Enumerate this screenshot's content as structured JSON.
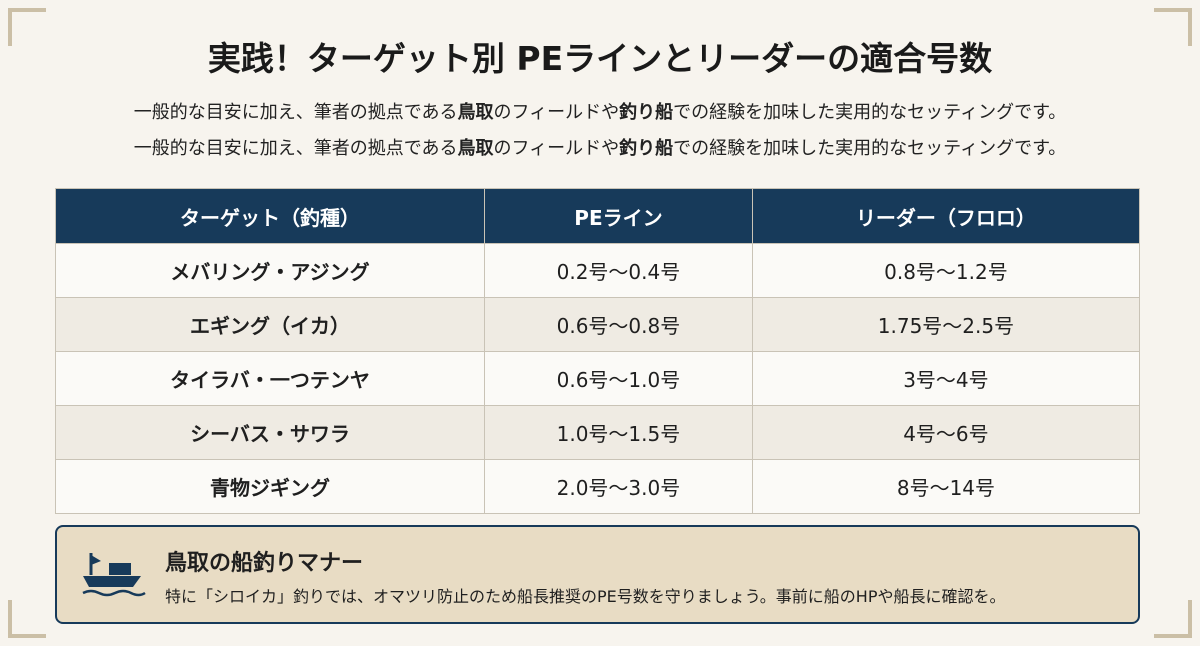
{
  "title": "実践！ターゲット別 PEラインとリーダーの適合号数",
  "subtitle_lines": [
    [
      "一般的な目安に加え、筆者の拠点である",
      "鳥取",
      "のフィールドや",
      "釣り船",
      "での経験を加味した実用的なセッティングです。"
    ],
    [
      "一般的な目安に加え、筆者の拠点である",
      "鳥取",
      "のフィールドや",
      "釣り船",
      "での経験を加味した実用的なセッティングです。"
    ]
  ],
  "table": {
    "header": [
      "ターゲット（釣種）",
      "PEライン",
      "リーダー（フロロ）"
    ],
    "rows": [
      [
        "メバリング・アジング",
        "0.2号〜0.4号",
        "0.8号〜1.2号"
      ],
      [
        "エギング（イカ）",
        "0.6号〜0.8号",
        "1.75号〜2.5号"
      ],
      [
        "タイラバ・一つテンヤ",
        "0.6号〜1.0号",
        "3号〜4号"
      ],
      [
        "シーバス・サワラ",
        "1.0号〜1.5号",
        "4号〜6号"
      ],
      [
        "青物ジギング",
        "2.0号〜3.0号",
        "8号〜14号"
      ]
    ]
  },
  "note": {
    "title": "鳥取の船釣りマナー",
    "body": "特に「シロイカ」釣りでは、オマツリ防止のため船長推奨のPE号数を守りましょう。事前に船のHPや船長に確認を。"
  }
}
